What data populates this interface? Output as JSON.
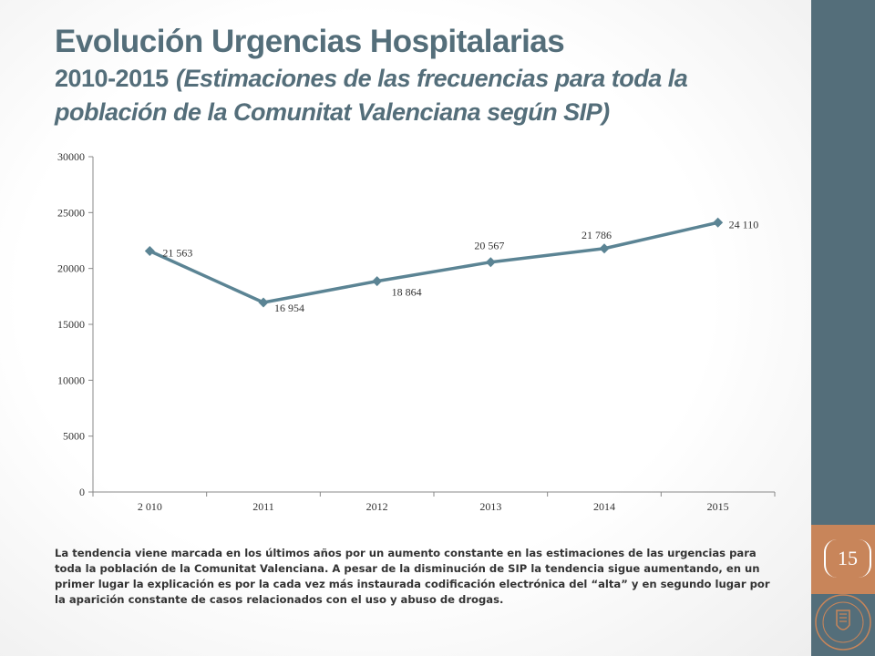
{
  "slide": {
    "title_main": "Evolución Urgencias Hospitalarias",
    "title_years": "2010-2015",
    "title_sub": "(Estimaciones de las frecuencias para toda la",
    "title_sub2": "población de la Comunitat Valenciana según SIP)",
    "page_number": "15",
    "description": "La tendencia viene marcada en los últimos años por un aumento constante en las estimaciones de las urgencias para toda la población de la Comunitat Valenciana. A pesar de la disminución de SIP la tendencia sigue aumentando, en un primer lugar la explicación es por la cada vez más instaurada codificación electrónica del “alta” y en segundo lugar por la aparición constante de casos relacionados con el uso y abuso de drogas.",
    "colors": {
      "accent": "#546e7a",
      "sidebar": "#546e7a",
      "page_box": "#c8855a",
      "series": "#5b8494"
    }
  },
  "chart_data": {
    "type": "line",
    "categories": [
      "2 010",
      "2011",
      "2012",
      "2013",
      "2014",
      "2015"
    ],
    "values": [
      21563,
      16954,
      18864,
      20567,
      21786,
      24110
    ],
    "data_labels": [
      "21 563",
      "16 954",
      "18 864",
      "20 567",
      "21 786",
      "24 110"
    ],
    "y_ticks": [
      "0",
      "5000",
      "10000",
      "15000",
      "20000",
      "25000",
      "30000"
    ],
    "ylim": [
      0,
      30000
    ],
    "marker": "diamond",
    "grid": false,
    "legend": "none"
  }
}
